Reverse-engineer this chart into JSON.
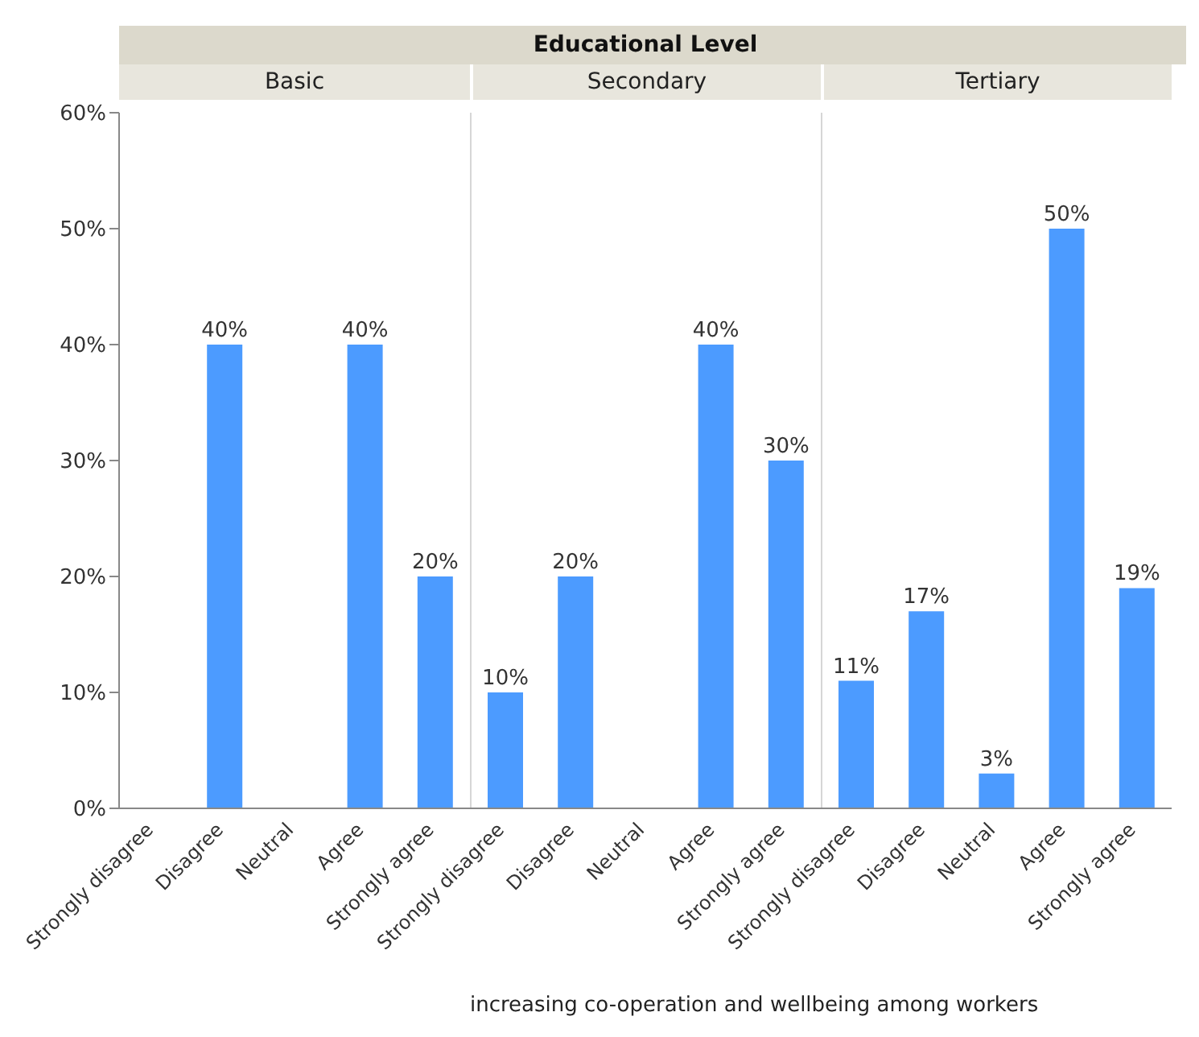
{
  "chart_data": [
    {
      "type": "bar",
      "subtitle": "Basic",
      "categories": [
        "Strongly disagree",
        "Disagree",
        "Neutral",
        "Agree",
        "Strongly agree"
      ],
      "values": [
        null,
        40,
        null,
        40,
        20
      ],
      "value_labels": [
        null,
        "40%",
        null,
        "40%",
        "20%"
      ],
      "color": "#4c9bff",
      "ylim": [
        0,
        60
      ],
      "yticks": [
        {
          "value": 0,
          "label": "0%"
        },
        {
          "value": 10,
          "label": "10%"
        },
        {
          "value": 20,
          "label": "20%"
        },
        {
          "value": 30,
          "label": "30%"
        },
        {
          "value": 40,
          "label": "40%"
        },
        {
          "value": 50,
          "label": "50%"
        },
        {
          "value": 60,
          "label": "60%"
        }
      ],
      "grid": false
    },
    {
      "type": "bar",
      "title": "Educational Level",
      "subtitle": "Secondary",
      "xlabel": "increasing co-operation and wellbeing among workers",
      "categories": [
        "Strongly disagree",
        "Disagree",
        "Neutral",
        "Agree",
        "Strongly agree"
      ],
      "values": [
        10,
        20,
        null,
        40,
        30
      ],
      "value_labels": [
        "10%",
        "20%",
        null,
        "40%",
        "30%"
      ],
      "color": "#4c9bff",
      "ylim": [
        0,
        60
      ],
      "tick_labels": "x",
      "grid": false
    },
    {
      "type": "bar",
      "subtitle": "Tertiary",
      "categories": [
        "Strongly disagree",
        "Disagree",
        "Neutral",
        "Agree",
        "Strongly agree"
      ],
      "values": [
        11,
        17,
        3,
        50,
        19
      ],
      "value_labels": [
        "11%",
        "17%",
        "3%",
        "50%",
        "19%"
      ],
      "color": "#4c9bff",
      "ylim": [
        0,
        60
      ],
      "tick_labels": "x",
      "grid": false
    }
  ]
}
